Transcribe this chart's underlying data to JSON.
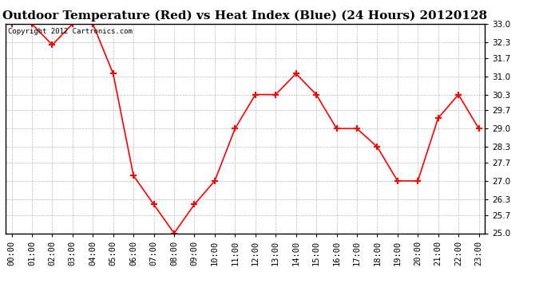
{
  "title": "Outdoor Temperature (Red) vs Heat Index (Blue) (24 Hours) 20120128",
  "copyright_text": "Copyright 2012 Cartronics.com",
  "x_labels": [
    "00:00",
    "01:00",
    "02:00",
    "03:00",
    "04:00",
    "05:00",
    "06:00",
    "07:00",
    "08:00",
    "09:00",
    "10:00",
    "11:00",
    "12:00",
    "13:00",
    "14:00",
    "15:00",
    "16:00",
    "17:00",
    "18:00",
    "19:00",
    "20:00",
    "21:00",
    "22:00",
    "23:00"
  ],
  "temp_values": [
    33.0,
    33.0,
    32.2,
    33.0,
    33.0,
    31.1,
    27.2,
    26.1,
    25.0,
    26.1,
    27.0,
    29.0,
    30.3,
    30.3,
    31.1,
    30.3,
    29.0,
    29.0,
    28.3,
    27.0,
    27.0,
    29.4,
    30.3,
    29.0
  ],
  "y_min": 25.0,
  "y_max": 33.0,
  "y_ticks": [
    25.0,
    25.7,
    26.3,
    27.0,
    27.7,
    28.3,
    29.0,
    29.7,
    30.3,
    31.0,
    31.7,
    32.3,
    33.0
  ],
  "temp_color": "red",
  "bg_color": "white",
  "grid_color": "#bbbbbb",
  "title_fontsize": 11,
  "marker": "+",
  "marker_size": 6,
  "marker_lw": 1.5,
  "line_width": 1.2,
  "tick_fontsize": 7.5,
  "copyright_fontsize": 6.5
}
